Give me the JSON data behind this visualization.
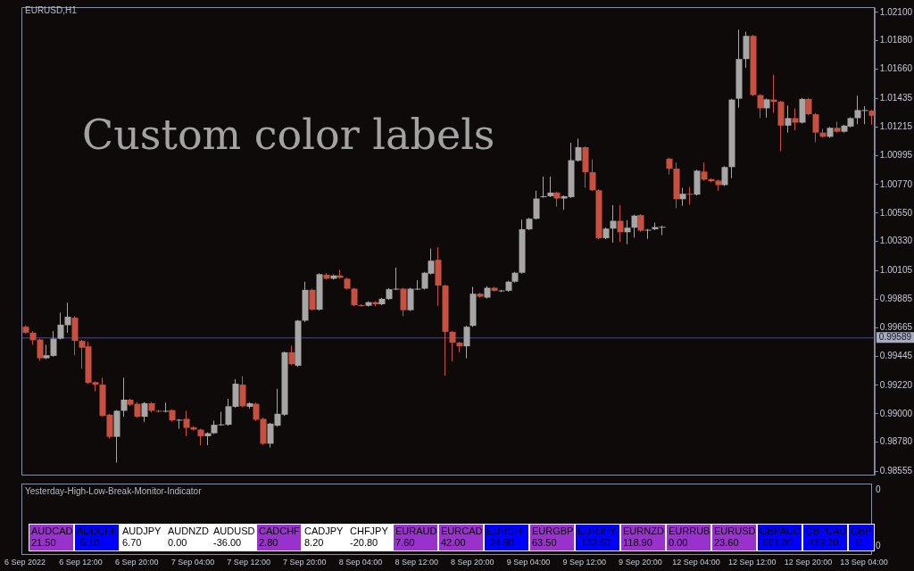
{
  "chart_data": [
    {
      "type": "candlestick",
      "title": "EURUSD,H1",
      "annotations": [
        "Custom color labels"
      ],
      "categories": [
        "6 Sep 2022",
        null,
        null,
        null,
        null,
        null,
        null,
        null,
        "6 Sep 12:00",
        null,
        null,
        null,
        null,
        null,
        null,
        null,
        "6 Sep 20:00",
        null,
        null,
        null,
        null,
        null,
        null,
        null,
        "7 Sep 04:00",
        null,
        null,
        null,
        null,
        null,
        null,
        null,
        "7 Sep 12:00",
        null,
        null,
        null,
        null,
        null,
        null,
        null,
        "7 Sep 20:00",
        null,
        null,
        null,
        null,
        null,
        null,
        null,
        "8 Sep 04:00",
        null,
        null,
        null,
        null,
        null,
        null,
        null,
        "8 Sep 12:00",
        null,
        null,
        null,
        null,
        null,
        null,
        null,
        "8 Sep 20:00",
        null,
        null,
        null,
        null,
        null,
        null,
        null,
        "9 Sep 04:00",
        null,
        null,
        null,
        null,
        null,
        null,
        null,
        "9 Sep 12:00",
        null,
        null,
        null,
        null,
        null,
        null,
        null,
        "9 Sep 20:00",
        null,
        null,
        null,
        null,
        null,
        null,
        null,
        "12 Sep 04:00",
        null,
        null,
        null,
        null,
        null,
        null,
        null,
        "12 Sep 12:00",
        null,
        null,
        null,
        null,
        null,
        null,
        null,
        "12 Sep 20:00",
        null,
        null,
        null,
        null,
        null,
        null,
        null,
        "13 Sep 04:00",
        null
      ],
      "ohlc": [
        [
          0.99672,
          0.99684,
          0.99619,
          0.99626
        ],
        [
          0.99626,
          0.99638,
          0.99533,
          0.99568
        ],
        [
          0.99573,
          0.9958,
          0.9941,
          0.99429
        ],
        [
          0.99429,
          0.99533,
          0.99422,
          0.99452
        ],
        [
          0.99447,
          0.99638,
          0.9944,
          0.9958
        ],
        [
          0.9958,
          0.99781,
          0.99573,
          0.99688
        ],
        [
          0.99684,
          0.99858,
          0.99626,
          0.99749
        ],
        [
          0.99742,
          0.99753,
          0.99452,
          0.99563
        ],
        [
          0.99563,
          0.9957,
          0.99348,
          0.9951
        ],
        [
          0.99521,
          0.99556,
          0.99232,
          0.99239
        ],
        [
          0.99244,
          0.9925,
          0.99174,
          0.99225
        ],
        [
          0.99225,
          0.99278,
          0.98977,
          0.98984
        ],
        [
          0.98993,
          0.99,
          0.9881,
          0.98822
        ],
        [
          0.98822,
          0.9903,
          0.98623,
          0.99023
        ],
        [
          0.99023,
          0.99278,
          0.98977,
          0.99109
        ],
        [
          0.99109,
          0.99116,
          0.9906,
          0.9907
        ],
        [
          0.99077,
          0.9909,
          0.9897,
          0.98977
        ],
        [
          0.98977,
          0.9909,
          0.98938,
          0.99081
        ],
        [
          0.99081,
          0.9909,
          0.9901,
          0.99023
        ],
        [
          0.99023,
          0.9903,
          0.9901,
          0.99019
        ],
        [
          0.99019,
          0.99086,
          0.9901,
          0.99023
        ],
        [
          0.99028,
          0.99035,
          0.9894,
          0.98949
        ],
        [
          0.98949,
          0.9896,
          0.98884,
          0.98954
        ],
        [
          0.98961,
          0.99023,
          0.98827,
          0.98891
        ],
        [
          0.98896,
          0.98905,
          0.9887,
          0.98878
        ],
        [
          0.98878,
          0.98885,
          0.98757,
          0.98827
        ],
        [
          0.98827,
          0.98857,
          0.98757,
          0.9885
        ],
        [
          0.9885,
          0.98947,
          0.98843,
          0.98915
        ],
        [
          0.98915,
          0.99016,
          0.98908,
          0.98918
        ],
        [
          0.98915,
          0.99116,
          0.98908,
          0.99058
        ],
        [
          0.99054,
          0.99267,
          0.99047,
          0.99232
        ],
        [
          0.99225,
          0.9929,
          0.9905,
          0.99058
        ],
        [
          0.99054,
          0.9909,
          0.9904,
          0.99081
        ],
        [
          0.99077,
          0.99086,
          0.98945,
          0.98954
        ],
        [
          0.98961,
          0.9897,
          0.9876,
          0.98769
        ],
        [
          0.98769,
          0.9893,
          0.98739,
          0.98924
        ],
        [
          0.98908,
          0.99193,
          0.989,
          0.99
        ],
        [
          0.98993,
          0.9948,
          0.98985,
          0.99475
        ],
        [
          0.99475,
          0.99526,
          0.99375,
          0.99383
        ],
        [
          0.99371,
          0.99725,
          0.99365,
          0.99719
        ],
        [
          0.99719,
          1.0002,
          0.9971,
          0.99957
        ],
        [
          0.99957,
          0.99965,
          0.99798,
          0.99804
        ],
        [
          0.99804,
          1.00085,
          0.99798,
          1.00078
        ],
        [
          1.00073,
          1.00085,
          1.00036,
          1.00043
        ],
        [
          1.00043,
          1.00075,
          1.00036,
          1.00068
        ],
        [
          1.00068,
          1.00112,
          1.00043,
          1.0005
        ],
        [
          1.00043,
          1.0005,
          0.9996,
          0.99966
        ],
        [
          0.99966,
          0.99973,
          0.99832,
          0.99839
        ],
        [
          0.99839,
          0.99846,
          0.99828,
          0.99836
        ],
        [
          0.99834,
          0.99869,
          0.99827,
          0.99862
        ],
        [
          0.99862,
          0.99869,
          0.9983,
          0.99846
        ],
        [
          0.99846,
          0.99895,
          0.99839,
          0.99888
        ],
        [
          0.99886,
          0.99969,
          0.99879,
          0.99962
        ],
        [
          0.99962,
          1.00129,
          0.99955,
          0.99966
        ],
        [
          0.99966,
          0.99973,
          0.99753,
          0.998
        ],
        [
          0.998,
          0.99973,
          0.99793,
          0.99966
        ],
        [
          0.99962,
          1.00031,
          0.99955,
          0.99966
        ],
        [
          0.99966,
          1.00096,
          0.99959,
          1.00089
        ],
        [
          1.00082,
          1.00275,
          1.00075,
          1.00182
        ],
        [
          1.00189,
          1.00286,
          0.99834,
          0.9999
        ],
        [
          0.9999,
          0.99997,
          0.99295,
          0.99633
        ],
        [
          0.99633,
          0.9964,
          0.99406,
          0.99549
        ],
        [
          0.99549,
          0.99556,
          0.99475,
          0.99521
        ],
        [
          0.99521,
          0.99679,
          0.99429,
          0.99672
        ],
        [
          0.99679,
          0.9998,
          0.99672,
          0.99927
        ],
        [
          0.99927,
          0.99934,
          0.99897,
          0.99904
        ],
        [
          0.99897,
          0.99985,
          0.9989,
          0.99973
        ],
        [
          0.99973,
          0.9998,
          0.99943,
          0.9995
        ],
        [
          0.9995,
          0.99957,
          0.9994,
          0.99952
        ],
        [
          0.9995,
          1.00027,
          0.99943,
          1.0002
        ],
        [
          1.0002,
          1.00096,
          1.00013,
          1.00089
        ],
        [
          1.00089,
          1.00499,
          1.00082,
          1.00425
        ],
        [
          1.00425,
          1.00513,
          1.00418,
          1.00506
        ],
        [
          1.00506,
          1.00722,
          1.00499,
          1.00662
        ],
        [
          1.00675,
          1.00831,
          1.00668,
          1.0068
        ],
        [
          1.0068,
          1.00831,
          1.00673,
          1.00708
        ],
        [
          1.00708,
          1.00715,
          1.00599,
          1.00662
        ],
        [
          1.00662,
          1.00687,
          1.00576,
          1.0068
        ],
        [
          1.00673,
          1.01093,
          1.00666,
          1.00958
        ],
        [
          1.00954,
          1.01125,
          1.00947,
          1.01058
        ],
        [
          1.01058,
          1.01065,
          1.00745,
          1.00865
        ],
        [
          1.00865,
          1.00965,
          1.0072,
          1.00726
        ],
        [
          1.00726,
          1.00733,
          1.00349,
          1.00356
        ],
        [
          1.00356,
          1.00437,
          1.00349,
          1.0043
        ],
        [
          1.0043,
          1.00611,
          1.00321,
          1.0049
        ],
        [
          1.0049,
          1.00611,
          1.00328,
          1.00402
        ],
        [
          1.00402,
          1.00495,
          1.00309,
          1.00437
        ],
        [
          1.00437,
          1.00537,
          1.0036,
          1.0053
        ],
        [
          1.00534,
          1.00541,
          1.00407,
          1.00414
        ],
        [
          1.00414,
          1.00428,
          1.00351,
          1.00421
        ],
        [
          1.00425,
          1.00476,
          1.00418,
          1.00442
        ],
        [
          1.00442,
          1.00451,
          1.00379,
          1.00444
        ],
        [
          1.0097,
          1.00977,
          1.00847,
          1.00893
        ],
        [
          1.00893,
          1.0094,
          1.00587,
          1.00657
        ],
        [
          1.00657,
          1.00745,
          1.00606,
          1.00699
        ],
        [
          1.00699,
          1.0075,
          1.00615,
          1.00692
        ],
        [
          1.00692,
          1.00884,
          1.00685,
          1.00877
        ],
        [
          1.0087,
          1.0094,
          1.00801,
          1.00808
        ],
        [
          1.00812,
          1.00819,
          1.00789,
          1.00796
        ],
        [
          1.00801,
          1.00808,
          1.00722,
          1.00766
        ],
        [
          1.00766,
          1.00912,
          1.00759,
          1.00905
        ],
        [
          1.00905,
          1.01433,
          1.00819,
          1.01426
        ],
        [
          1.01433,
          1.01966,
          1.01364,
          1.01739
        ],
        [
          1.01739,
          1.0195,
          1.01672,
          1.01918
        ],
        [
          1.01918,
          1.01925,
          1.01454,
          1.01461
        ],
        [
          1.01461,
          1.01468,
          1.01283,
          1.01359
        ],
        [
          1.01359,
          1.01435,
          1.01287,
          1.01428
        ],
        [
          1.01426,
          1.01618,
          1.01324,
          1.01408
        ],
        [
          1.0141,
          1.01417,
          1.01028,
          1.01225
        ],
        [
          1.01225,
          1.0138,
          1.01171,
          1.01283
        ],
        [
          1.01283,
          1.01357,
          1.0119,
          1.01248
        ],
        [
          1.01248,
          1.01438,
          1.01241,
          1.01431
        ],
        [
          1.01431,
          1.01438,
          1.01306,
          1.01313
        ],
        [
          1.01313,
          1.0132,
          1.01097,
          1.01171
        ],
        [
          1.01171,
          1.01201,
          1.01132,
          1.01139
        ],
        [
          1.01139,
          1.01215,
          1.01132,
          1.01208
        ],
        [
          1.01208,
          1.01255,
          1.01171,
          1.01178
        ],
        [
          1.01178,
          1.01232,
          1.01171,
          1.01225
        ],
        [
          1.01218,
          1.0129,
          1.01211,
          1.01283
        ],
        [
          1.01283,
          1.01456,
          1.01236,
          1.01345
        ],
        [
          1.0134,
          1.01375,
          1.01236,
          1.01345
        ],
        [
          1.0134,
          1.01347,
          1.01232,
          1.01301
        ]
      ],
      "ylim": [
        0.9853,
        1.0214
      ],
      "yticks": [
        {
          "value": 1.021,
          "label": "1.02100"
        },
        {
          "value": 1.0188,
          "label": "1.01880"
        },
        {
          "value": 1.0166,
          "label": "1.01660"
        },
        {
          "value": 1.01435,
          "label": "1.01435"
        },
        {
          "value": 1.01215,
          "label": "1.01215"
        },
        {
          "value": 1.00995,
          "label": "1.00995"
        },
        {
          "value": 1.0077,
          "label": "1.00770"
        },
        {
          "value": 1.0055,
          "label": "1.00550"
        },
        {
          "value": 1.0033,
          "label": "1.00330"
        },
        {
          "value": 1.00105,
          "label": "1.00105"
        },
        {
          "value": 0.99885,
          "label": "0.99885"
        },
        {
          "value": 0.99665,
          "label": "0.99665"
        },
        {
          "value": 0.99445,
          "label": "0.99445"
        },
        {
          "value": 0.9922,
          "label": "0.99220"
        },
        {
          "value": 0.99,
          "label": "0.99000"
        },
        {
          "value": 0.9878,
          "label": "0.98780"
        },
        {
          "value": 0.98555,
          "label": "0.98555"
        }
      ],
      "ref_lines": [
        {
          "axis": "y",
          "value": 0.99589,
          "label": "0.99589",
          "color": "#4b4f86"
        }
      ]
    },
    {
      "type": "other",
      "title": "Yesterday-High-Low-Break-Monitor-Indicator",
      "categories": [
        "AUDCAD",
        "AUDCHF",
        "AUDJPY",
        "AUDNZD",
        "AUDUSD",
        "CADCHF",
        "CADJPY",
        "CHFJPY",
        "EURAUD",
        "EURCAD",
        "EURCHF",
        "EURGBP",
        "EURJPY",
        "EURNZD",
        "EURRUB",
        "EURUSD",
        "GBPAUD",
        "GBPCAD",
        "GBP"
      ],
      "value_labels": [
        "21.50",
        "-5.10",
        "6.70",
        "0.00",
        "-36.00",
        "2.80",
        "8.20",
        "-20.80",
        "7.60",
        "42.00",
        "-24.90",
        "63.50",
        "-132.50",
        "118.90",
        "0.00",
        "23.60",
        "-681.80",
        "-419.20",
        "-11"
      ],
      "colors": [
        "#9932cc",
        "#0000ff",
        "#ffffff",
        "#ffffff",
        "#ffffff",
        "#9932cc",
        "#ffffff",
        "#ffffff",
        "#9932cc",
        "#9932cc",
        "#0000ff",
        "#9932cc",
        "#0000ff",
        "#9932cc",
        "#9932cc",
        "#9932cc",
        "#0000ff",
        "#0000ff",
        "#0000ff"
      ],
      "annotations": [
        "0",
        "0"
      ]
    }
  ]
}
